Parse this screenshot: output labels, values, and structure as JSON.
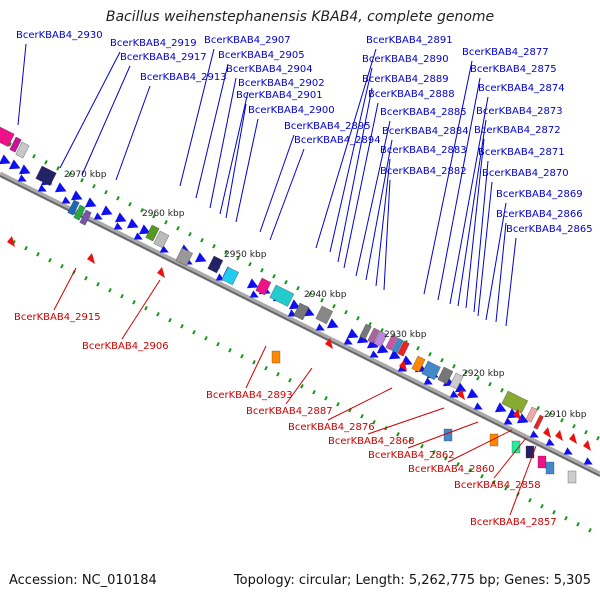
{
  "title": "Bacillus weihenstephanensis KBAB4, complete genome",
  "footer": {
    "accession": "Accession: NC_010184",
    "topology": "Topology: circular; Length: 5,262,775 bp; Genes: 5,305"
  },
  "colors": {
    "backbone": "#888888",
    "forward_label": "#0000cc",
    "reverse_label": "#cc0000",
    "forward_arrow": "#1010ee",
    "reverse_arrow": "#ee1010",
    "tick": "#139713"
  },
  "kbp_markers": [
    "2970 kbp",
    "2960 kbp",
    "2950 kbp",
    "2940 kbp",
    "2930 kbp",
    "2920 kbp",
    "2910 kbp"
  ],
  "forward_genes": [
    "BcerKBAB4_2930",
    "BcerKBAB4_2919",
    "BcerKBAB4_2917",
    "BcerKBAB4_2913",
    "BcerKBAB4_2907",
    "BcerKBAB4_2905",
    "BcerKBAB4_2904",
    "BcerKBAB4_2902",
    "BcerKBAB4_2901",
    "BcerKBAB4_2900",
    "BcerKBAB4_2895",
    "BcerKBAB4_2894",
    "BcerKBAB4_2891",
    "BcerKBAB4_2890",
    "BcerKBAB4_2889",
    "BcerKBAB4_2888",
    "BcerKBAB4_2885",
    "BcerKBAB4_2884",
    "BcerKBAB4_2883",
    "BcerKBAB4_2882",
    "BcerKBAB4_2877",
    "BcerKBAB4_2875",
    "BcerKBAB4_2874",
    "BcerKBAB4_2873",
    "BcerKBAB4_2872",
    "BcerKBAB4_2871",
    "BcerKBAB4_2870",
    "BcerKBAB4_2869",
    "BcerKBAB4_2866",
    "BcerKBAB4_2865"
  ],
  "reverse_genes": [
    "BcerKBAB4_2915",
    "BcerKBAB4_2906",
    "BcerKBAB4_2893",
    "BcerKBAB4_2887",
    "BcerKBAB4_2876",
    "BcerKBAB4_2868",
    "BcerKBAB4_2862",
    "BcerKBAB4_2860",
    "BcerKBAB4_2858",
    "BcerKBAB4_2857"
  ]
}
